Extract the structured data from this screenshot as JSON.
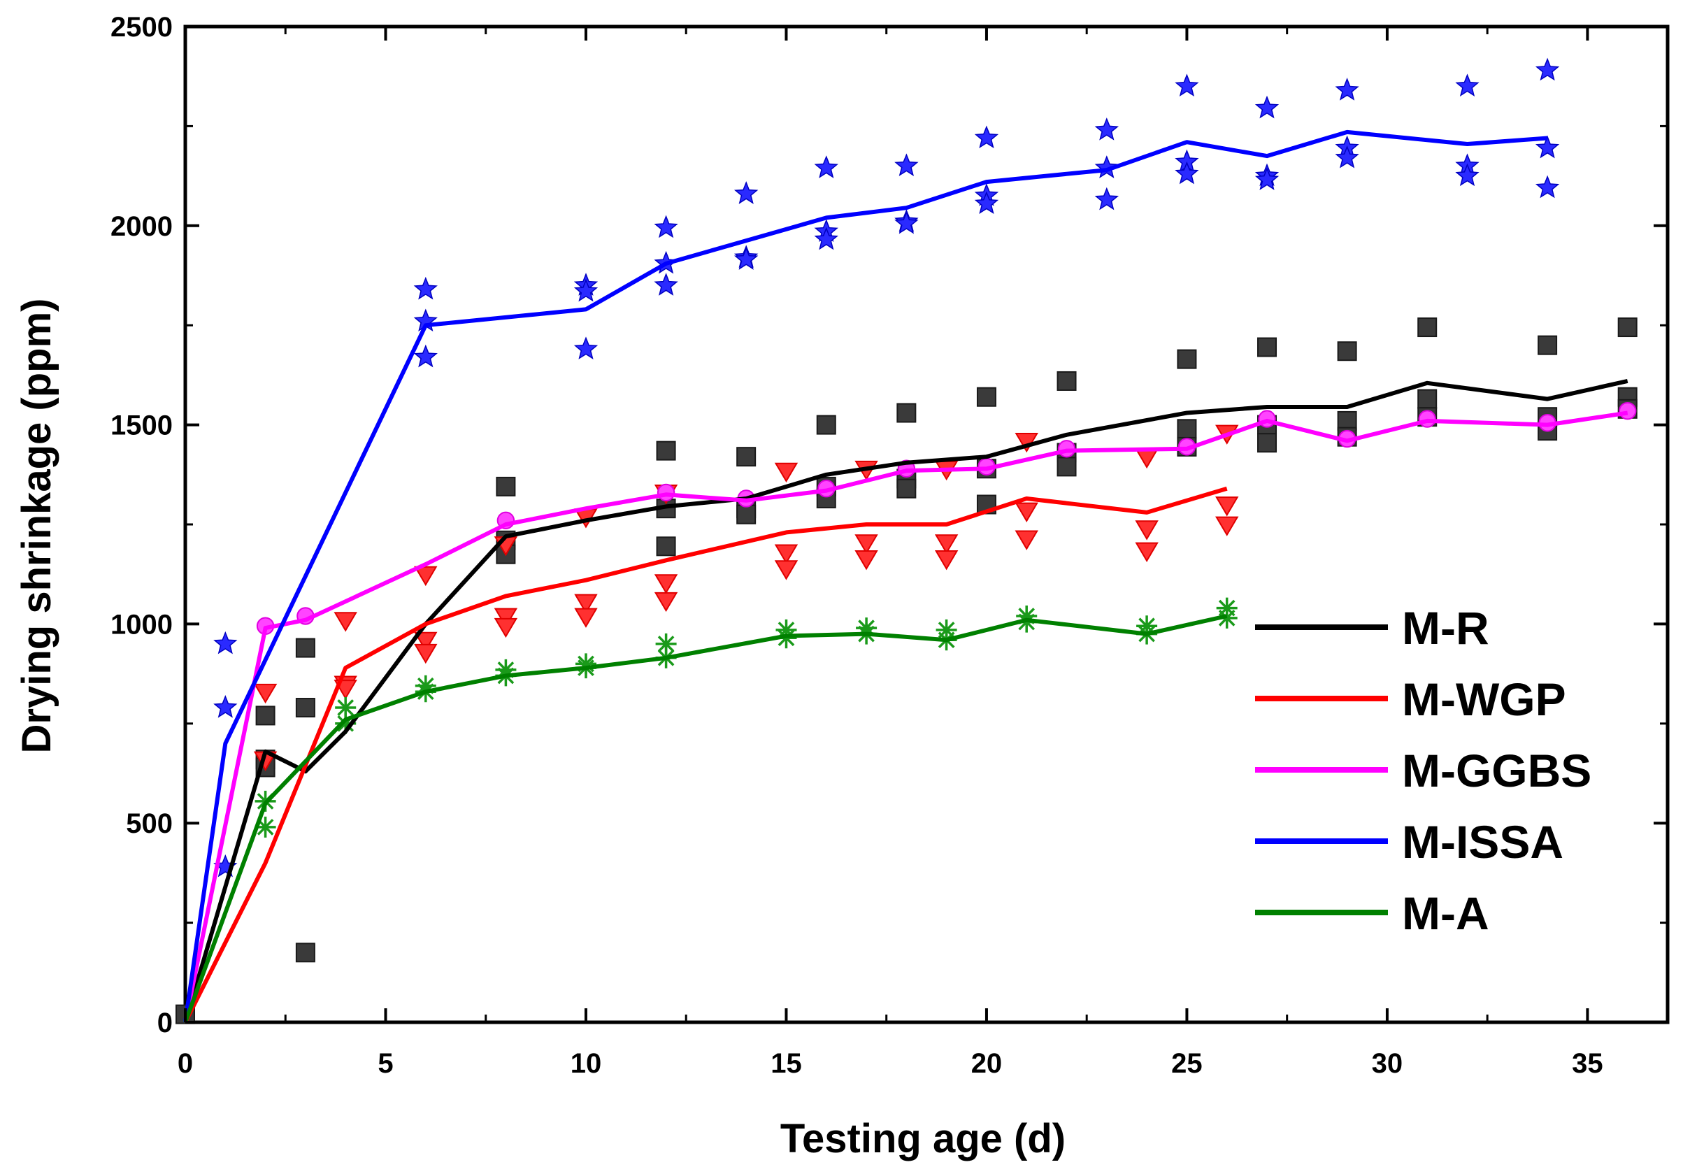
{
  "chart_data": {
    "type": "line",
    "title": "",
    "xlabel": "Testing age (d)",
    "ylabel": "Drying shrinkage (ppm)",
    "xlim": [
      0,
      37
    ],
    "ylim": [
      0,
      2500
    ],
    "xticks": [
      "0",
      "5",
      "10",
      "15",
      "20",
      "25",
      "30",
      "35"
    ],
    "yticks": [
      "0",
      "500",
      "1000",
      "1500",
      "2000",
      "2500"
    ],
    "legend_position": "center-right",
    "series": [
      {
        "name": "M-R",
        "color": "#000000",
        "marker": "square",
        "marker_color": "#3a3a3a",
        "line": [
          [
            0,
            0
          ],
          [
            2,
            680
          ],
          [
            3,
            630
          ],
          [
            4,
            730
          ],
          [
            6,
            1000
          ],
          [
            8,
            1220
          ],
          [
            10,
            1260
          ],
          [
            12,
            1295
          ],
          [
            14,
            1315
          ],
          [
            16,
            1375
          ],
          [
            18,
            1405
          ],
          [
            20,
            1420
          ],
          [
            22,
            1475
          ],
          [
            25,
            1530
          ],
          [
            27,
            1545
          ],
          [
            29,
            1545
          ],
          [
            31,
            1605
          ],
          [
            34,
            1565
          ],
          [
            36,
            1610
          ]
        ],
        "points": [
          [
            0,
            20
          ],
          [
            2,
            660
          ],
          [
            2,
            640
          ],
          [
            2,
            770
          ],
          [
            3,
            940
          ],
          [
            3,
            790
          ],
          [
            3,
            175
          ],
          [
            8,
            1345
          ],
          [
            8,
            1210
          ],
          [
            8,
            1175
          ],
          [
            12,
            1435
          ],
          [
            12,
            1290
          ],
          [
            12,
            1195
          ],
          [
            14,
            1420
          ],
          [
            14,
            1290
          ],
          [
            14,
            1275
          ],
          [
            16,
            1500
          ],
          [
            16,
            1345
          ],
          [
            16,
            1315
          ],
          [
            18,
            1530
          ],
          [
            18,
            1365
          ],
          [
            18,
            1340
          ],
          [
            20,
            1570
          ],
          [
            20,
            1390
          ],
          [
            20,
            1300
          ],
          [
            22,
            1610
          ],
          [
            22,
            1430
          ],
          [
            22,
            1395
          ],
          [
            25,
            1665
          ],
          [
            25,
            1490
          ],
          [
            25,
            1445
          ],
          [
            27,
            1695
          ],
          [
            27,
            1500
          ],
          [
            27,
            1455
          ],
          [
            29,
            1685
          ],
          [
            29,
            1510
          ],
          [
            29,
            1470
          ],
          [
            31,
            1745
          ],
          [
            31,
            1565
          ],
          [
            31,
            1520
          ],
          [
            34,
            1700
          ],
          [
            34,
            1520
          ],
          [
            34,
            1485
          ],
          [
            36,
            1745
          ],
          [
            36,
            1570
          ],
          [
            36,
            1540
          ]
        ]
      },
      {
        "name": "M-WGP",
        "color": "#ff0000",
        "marker": "triangle-down",
        "marker_color": "#ff3030",
        "line": [
          [
            0,
            0
          ],
          [
            2,
            400
          ],
          [
            4,
            890
          ],
          [
            6,
            1000
          ],
          [
            8,
            1070
          ],
          [
            10,
            1110
          ],
          [
            12,
            1160
          ],
          [
            15,
            1230
          ],
          [
            17,
            1250
          ],
          [
            19,
            1250
          ],
          [
            21,
            1315
          ],
          [
            24,
            1280
          ],
          [
            26,
            1340
          ]
        ],
        "points": [
          [
            2,
            830
          ],
          [
            2,
            660
          ],
          [
            4,
            1010
          ],
          [
            4,
            850
          ],
          [
            4,
            840
          ],
          [
            6,
            1125
          ],
          [
            6,
            960
          ],
          [
            6,
            930
          ],
          [
            8,
            1200
          ],
          [
            8,
            1020
          ],
          [
            8,
            995
          ],
          [
            10,
            1270
          ],
          [
            10,
            1055
          ],
          [
            10,
            1020
          ],
          [
            12,
            1330
          ],
          [
            12,
            1105
          ],
          [
            12,
            1060
          ],
          [
            15,
            1385
          ],
          [
            15,
            1180
          ],
          [
            15,
            1140
          ],
          [
            17,
            1390
          ],
          [
            17,
            1205
          ],
          [
            17,
            1165
          ],
          [
            19,
            1390
          ],
          [
            19,
            1205
          ],
          [
            19,
            1165
          ],
          [
            21,
            1460
          ],
          [
            21,
            1285
          ],
          [
            21,
            1215
          ],
          [
            24,
            1420
          ],
          [
            24,
            1240
          ],
          [
            24,
            1185
          ],
          [
            26,
            1480
          ],
          [
            26,
            1300
          ],
          [
            26,
            1250
          ]
        ]
      },
      {
        "name": "M-GGBS",
        "color": "#ff00ff",
        "marker": "circle",
        "marker_color": "#ff44ff",
        "line": [
          [
            0,
            0
          ],
          [
            2,
            990
          ],
          [
            3,
            1010
          ],
          [
            6,
            1150
          ],
          [
            8,
            1250
          ],
          [
            10,
            1290
          ],
          [
            12,
            1325
          ],
          [
            14,
            1310
          ],
          [
            16,
            1335
          ],
          [
            18,
            1385
          ],
          [
            20,
            1390
          ],
          [
            22,
            1435
          ],
          [
            25,
            1440
          ],
          [
            27,
            1510
          ],
          [
            29,
            1460
          ],
          [
            31,
            1510
          ],
          [
            34,
            1500
          ],
          [
            36,
            1530
          ]
        ],
        "points": [
          [
            2,
            995
          ],
          [
            3,
            1020
          ],
          [
            8,
            1260
          ],
          [
            12,
            1330
          ],
          [
            14,
            1315
          ],
          [
            16,
            1340
          ],
          [
            18,
            1390
          ],
          [
            20,
            1395
          ],
          [
            22,
            1440
          ],
          [
            25,
            1445
          ],
          [
            27,
            1515
          ],
          [
            29,
            1465
          ],
          [
            31,
            1515
          ],
          [
            34,
            1505
          ],
          [
            36,
            1535
          ]
        ]
      },
      {
        "name": "M-ISSA",
        "color": "#0000ff",
        "marker": "star",
        "marker_color": "#2a2aff",
        "line": [
          [
            0,
            0
          ],
          [
            1,
            700
          ],
          [
            6,
            1750
          ],
          [
            10,
            1790
          ],
          [
            12,
            1905
          ],
          [
            16,
            2020
          ],
          [
            18,
            2045
          ],
          [
            20,
            2110
          ],
          [
            23,
            2140
          ],
          [
            25,
            2210
          ],
          [
            27,
            2175
          ],
          [
            29,
            2235
          ],
          [
            32,
            2205
          ],
          [
            34,
            2220
          ]
        ],
        "points": [
          [
            1,
            950
          ],
          [
            1,
            790
          ],
          [
            1,
            390
          ],
          [
            6,
            1840
          ],
          [
            6,
            1760
          ],
          [
            6,
            1670
          ],
          [
            10,
            1850
          ],
          [
            10,
            1835
          ],
          [
            10,
            1690
          ],
          [
            12,
            1995
          ],
          [
            12,
            1905
          ],
          [
            12,
            1850
          ],
          [
            14,
            2080
          ],
          [
            14,
            1920
          ],
          [
            14,
            1915
          ],
          [
            16,
            2145
          ],
          [
            16,
            1985
          ],
          [
            16,
            1965
          ],
          [
            18,
            2150
          ],
          [
            18,
            2010
          ],
          [
            18,
            2005
          ],
          [
            20,
            2220
          ],
          [
            20,
            2075
          ],
          [
            20,
            2055
          ],
          [
            23,
            2240
          ],
          [
            23,
            2145
          ],
          [
            23,
            2065
          ],
          [
            25,
            2350
          ],
          [
            25,
            2160
          ],
          [
            25,
            2130
          ],
          [
            27,
            2295
          ],
          [
            27,
            2125
          ],
          [
            27,
            2115
          ],
          [
            29,
            2340
          ],
          [
            29,
            2195
          ],
          [
            29,
            2170
          ],
          [
            32,
            2350
          ],
          [
            32,
            2150
          ],
          [
            32,
            2125
          ],
          [
            34,
            2390
          ],
          [
            34,
            2195
          ],
          [
            34,
            2095
          ]
        ]
      },
      {
        "name": "M-A",
        "color": "#008000",
        "marker": "asterisk",
        "marker_color": "#1a9a1a",
        "line": [
          [
            0,
            0
          ],
          [
            2,
            550
          ],
          [
            4,
            760
          ],
          [
            6,
            830
          ],
          [
            8,
            870
          ],
          [
            10,
            890
          ],
          [
            12,
            915
          ],
          [
            15,
            970
          ],
          [
            17,
            975
          ],
          [
            19,
            960
          ],
          [
            21,
            1010
          ],
          [
            24,
            975
          ],
          [
            26,
            1020
          ]
        ],
        "points": [
          [
            2,
            555
          ],
          [
            2,
            490
          ],
          [
            4,
            790
          ],
          [
            4,
            750
          ],
          [
            6,
            845
          ],
          [
            6,
            830
          ],
          [
            8,
            885
          ],
          [
            8,
            870
          ],
          [
            10,
            900
          ],
          [
            10,
            890
          ],
          [
            12,
            950
          ],
          [
            12,
            915
          ],
          [
            15,
            985
          ],
          [
            15,
            965
          ],
          [
            17,
            990
          ],
          [
            17,
            975
          ],
          [
            19,
            985
          ],
          [
            19,
            960
          ],
          [
            21,
            1020
          ],
          [
            21,
            1005
          ],
          [
            24,
            995
          ],
          [
            24,
            975
          ],
          [
            26,
            1040
          ],
          [
            26,
            1015
          ]
        ]
      }
    ]
  }
}
